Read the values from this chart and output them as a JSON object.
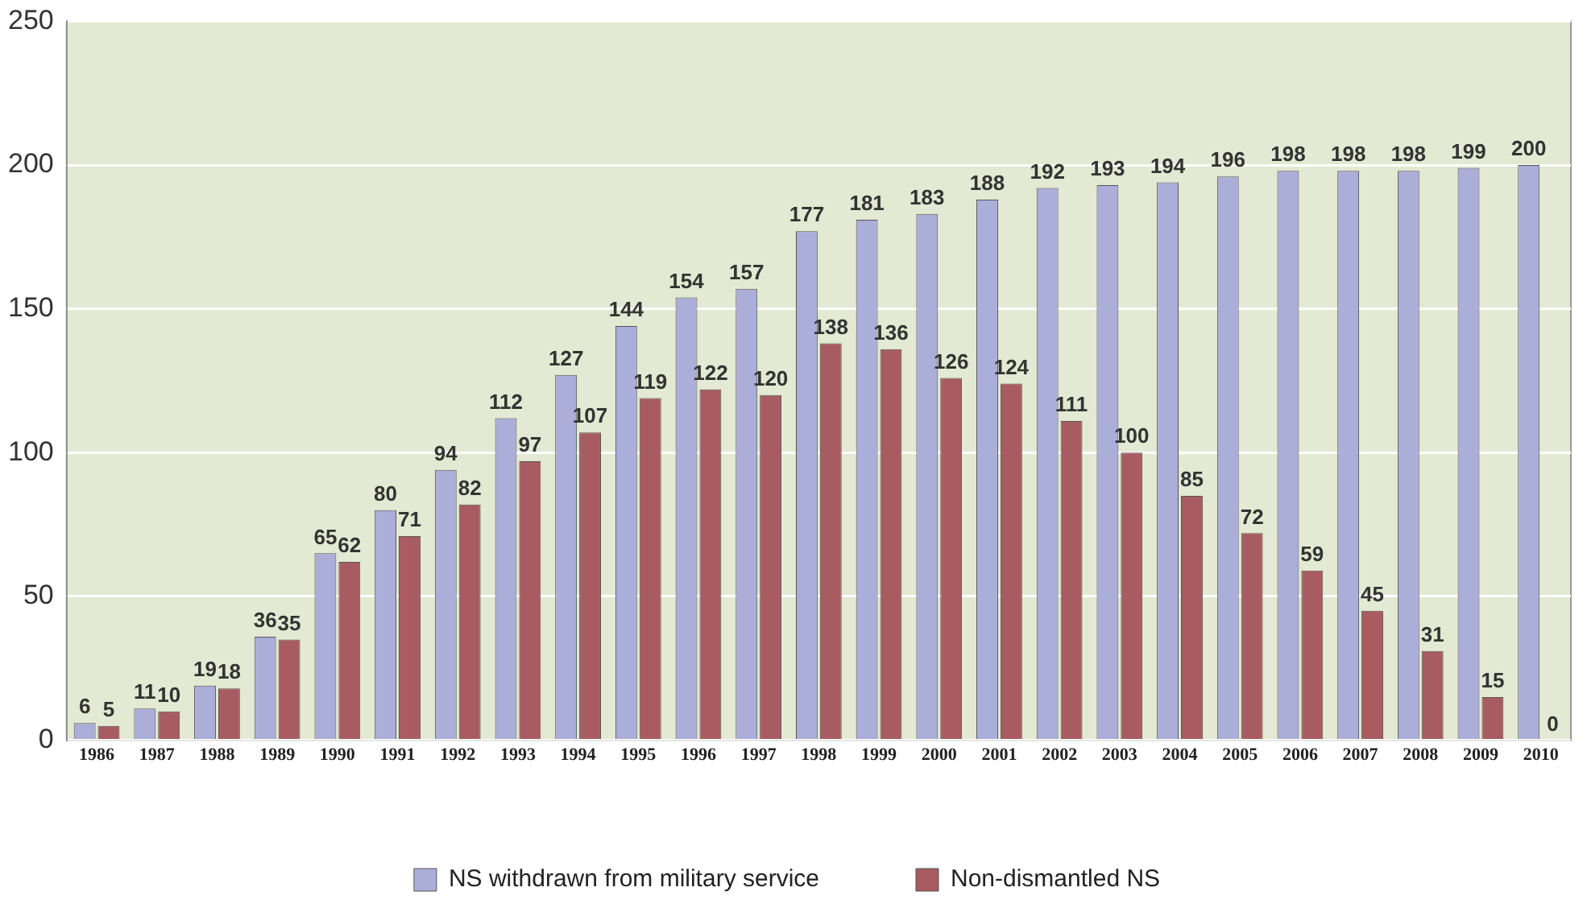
{
  "chart_data": {
    "type": "bar",
    "categories": [
      "1986",
      "1987",
      "1988",
      "1989",
      "1990",
      "1991",
      "1992",
      "1993",
      "1994",
      "1995",
      "1996",
      "1997",
      "1998",
      "1999",
      "2000",
      "2001",
      "2002",
      "2003",
      "2004",
      "2005",
      "2006",
      "2007",
      "2008",
      "2009",
      "2010"
    ],
    "series": [
      {
        "name": "NS withdrawn from military service",
        "color": "#aaaed8",
        "values": [
          6,
          11,
          19,
          36,
          65,
          80,
          94,
          112,
          127,
          144,
          154,
          157,
          177,
          181,
          183,
          188,
          192,
          193,
          194,
          196,
          198,
          198,
          198,
          199,
          200
        ]
      },
      {
        "name": "Non-dismantled NS",
        "color": "#a85c62",
        "values": [
          5,
          10,
          18,
          35,
          62,
          71,
          82,
          97,
          107,
          119,
          122,
          120,
          138,
          136,
          126,
          124,
          111,
          100,
          85,
          72,
          59,
          45,
          31,
          15,
          0
        ]
      }
    ],
    "ylim": [
      0,
      250
    ],
    "yticks": [
      0,
      50,
      100,
      150,
      200,
      250
    ],
    "grid": "y",
    "legend": "bottom",
    "data_labels": true
  }
}
